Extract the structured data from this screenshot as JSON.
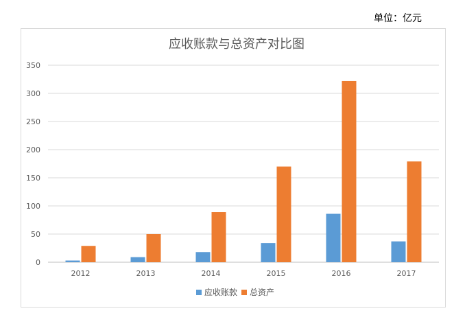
{
  "unit_label": "单位：亿元",
  "chart_data": {
    "type": "bar",
    "title": "应收账款与总资产对比图",
    "xlabel": "",
    "ylabel": "",
    "categories": [
      "2012",
      "2013",
      "2014",
      "2015",
      "2016",
      "2017"
    ],
    "series": [
      {
        "name": "应收账款",
        "color": "#5b9bd5",
        "values": [
          3,
          9,
          18,
          34,
          86,
          37
        ]
      },
      {
        "name": "总资产",
        "color": "#ed7d31",
        "values": [
          29,
          50,
          89,
          170,
          322,
          179
        ]
      }
    ],
    "ylim": [
      0,
      350
    ],
    "yticks": [
      0,
      50,
      100,
      150,
      200,
      250,
      300,
      350
    ],
    "grid": true,
    "legend_position": "bottom"
  }
}
